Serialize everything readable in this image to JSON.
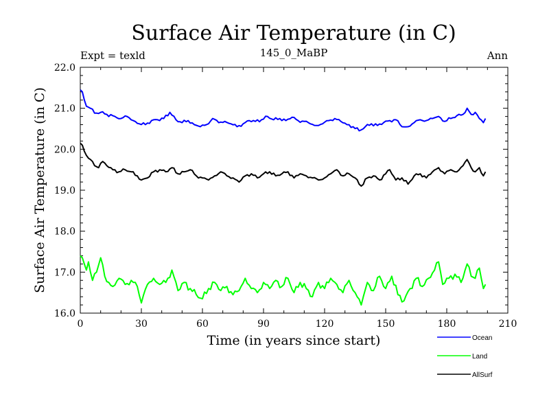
{
  "chart_data": {
    "type": "line",
    "title": "Surface Air Temperature (in C)",
    "subtitle": "145_0_MaBP",
    "left_label": "Expt = texld",
    "right_label": "Ann",
    "xlabel": "Time (in years since start)",
    "ylabel": "Surface Air Temperature (in C)",
    "xlim": [
      0,
      210
    ],
    "ylim": [
      16.0,
      22.0
    ],
    "x_ticks": [
      0,
      30,
      60,
      90,
      120,
      150,
      180,
      210
    ],
    "y_ticks": [
      "16.0",
      "17.0",
      "18.0",
      "19.0",
      "20.0",
      "21.0",
      "22.0"
    ],
    "legend_position": "bottom-right",
    "series": [
      {
        "name": "Ocean",
        "color": "#0000ff",
        "anchors": [
          [
            0,
            21.45
          ],
          [
            1,
            21.4
          ],
          [
            2,
            21.2
          ],
          [
            3,
            21.05
          ],
          [
            5,
            21.0
          ],
          [
            7,
            20.88
          ],
          [
            10,
            20.9
          ],
          [
            13,
            20.85
          ],
          [
            17,
            20.8
          ],
          [
            20,
            20.75
          ],
          [
            23,
            20.8
          ],
          [
            26,
            20.7
          ],
          [
            29,
            20.62
          ],
          [
            32,
            20.6
          ],
          [
            35,
            20.7
          ],
          [
            38,
            20.72
          ],
          [
            41,
            20.75
          ],
          [
            44,
            20.9
          ],
          [
            47,
            20.72
          ],
          [
            50,
            20.65
          ],
          [
            53,
            20.7
          ],
          [
            56,
            20.6
          ],
          [
            59,
            20.55
          ],
          [
            62,
            20.6
          ],
          [
            65,
            20.75
          ],
          [
            68,
            20.65
          ],
          [
            71,
            20.68
          ],
          [
            74,
            20.62
          ],
          [
            77,
            20.55
          ],
          [
            80,
            20.62
          ],
          [
            83,
            20.7
          ],
          [
            86,
            20.68
          ],
          [
            89,
            20.72
          ],
          [
            92,
            20.8
          ],
          [
            95,
            20.72
          ],
          [
            98,
            20.75
          ],
          [
            101,
            20.7
          ],
          [
            104,
            20.78
          ],
          [
            107,
            20.7
          ],
          [
            110,
            20.68
          ],
          [
            113,
            20.62
          ],
          [
            116,
            20.58
          ],
          [
            119,
            20.62
          ],
          [
            122,
            20.7
          ],
          [
            125,
            20.75
          ],
          [
            128,
            20.68
          ],
          [
            131,
            20.6
          ],
          [
            134,
            20.55
          ],
          [
            137,
            20.45
          ],
          [
            140,
            20.55
          ],
          [
            143,
            20.62
          ],
          [
            146,
            20.58
          ],
          [
            149,
            20.65
          ],
          [
            152,
            20.7
          ],
          [
            155,
            20.72
          ],
          [
            158,
            20.55
          ],
          [
            161,
            20.55
          ],
          [
            164,
            20.65
          ],
          [
            167,
            20.72
          ],
          [
            170,
            20.7
          ],
          [
            173,
            20.75
          ],
          [
            176,
            20.8
          ],
          [
            179,
            20.68
          ],
          [
            182,
            20.75
          ],
          [
            185,
            20.82
          ],
          [
            188,
            20.85
          ],
          [
            190,
            21.0
          ],
          [
            192,
            20.85
          ],
          [
            194,
            20.9
          ],
          [
            196,
            20.75
          ],
          [
            198,
            20.65
          ],
          [
            199,
            20.75
          ]
        ]
      },
      {
        "name": "Land",
        "color": "#00ff00",
        "anchors": [
          [
            0,
            17.4
          ],
          [
            1,
            17.35
          ],
          [
            2,
            17.2
          ],
          [
            3,
            17.05
          ],
          [
            4,
            17.25
          ],
          [
            5,
            17.0
          ],
          [
            6,
            16.8
          ],
          [
            8,
            17.0
          ],
          [
            10,
            17.35
          ],
          [
            12,
            16.9
          ],
          [
            14,
            16.75
          ],
          [
            16,
            16.65
          ],
          [
            19,
            16.85
          ],
          [
            22,
            16.7
          ],
          [
            25,
            16.8
          ],
          [
            28,
            16.65
          ],
          [
            30,
            16.25
          ],
          [
            33,
            16.7
          ],
          [
            36,
            16.85
          ],
          [
            39,
            16.7
          ],
          [
            42,
            16.75
          ],
          [
            45,
            17.05
          ],
          [
            48,
            16.55
          ],
          [
            51,
            16.75
          ],
          [
            54,
            16.6
          ],
          [
            57,
            16.45
          ],
          [
            60,
            16.35
          ],
          [
            63,
            16.6
          ],
          [
            66,
            16.75
          ],
          [
            69,
            16.55
          ],
          [
            72,
            16.65
          ],
          [
            75,
            16.45
          ],
          [
            78,
            16.55
          ],
          [
            81,
            16.85
          ],
          [
            84,
            16.6
          ],
          [
            87,
            16.5
          ],
          [
            90,
            16.75
          ],
          [
            93,
            16.6
          ],
          [
            96,
            16.8
          ],
          [
            99,
            16.65
          ],
          [
            102,
            16.85
          ],
          [
            105,
            16.5
          ],
          [
            108,
            16.75
          ],
          [
            111,
            16.6
          ],
          [
            114,
            16.4
          ],
          [
            117,
            16.75
          ],
          [
            120,
            16.6
          ],
          [
            123,
            16.85
          ],
          [
            126,
            16.7
          ],
          [
            129,
            16.5
          ],
          [
            132,
            16.8
          ],
          [
            135,
            16.5
          ],
          [
            138,
            16.2
          ],
          [
            141,
            16.75
          ],
          [
            144,
            16.55
          ],
          [
            147,
            16.9
          ],
          [
            150,
            16.6
          ],
          [
            153,
            16.9
          ],
          [
            156,
            16.45
          ],
          [
            159,
            16.3
          ],
          [
            162,
            16.6
          ],
          [
            165,
            16.85
          ],
          [
            168,
            16.65
          ],
          [
            171,
            16.85
          ],
          [
            174,
            17.05
          ],
          [
            176,
            17.25
          ],
          [
            178,
            16.7
          ],
          [
            181,
            16.85
          ],
          [
            184,
            16.95
          ],
          [
            187,
            16.75
          ],
          [
            190,
            17.2
          ],
          [
            192,
            16.9
          ],
          [
            194,
            16.85
          ],
          [
            196,
            17.1
          ],
          [
            198,
            16.6
          ],
          [
            199,
            16.7
          ]
        ]
      },
      {
        "name": "AllSurf",
        "color": "#000000",
        "anchors": [
          [
            0,
            20.15
          ],
          [
            1,
            20.1
          ],
          [
            2,
            19.95
          ],
          [
            3,
            19.85
          ],
          [
            5,
            19.75
          ],
          [
            7,
            19.6
          ],
          [
            9,
            19.55
          ],
          [
            11,
            19.7
          ],
          [
            13,
            19.6
          ],
          [
            16,
            19.5
          ],
          [
            19,
            19.45
          ],
          [
            22,
            19.5
          ],
          [
            25,
            19.45
          ],
          [
            28,
            19.35
          ],
          [
            30,
            19.25
          ],
          [
            33,
            19.3
          ],
          [
            36,
            19.45
          ],
          [
            39,
            19.5
          ],
          [
            42,
            19.45
          ],
          [
            45,
            19.55
          ],
          [
            48,
            19.4
          ],
          [
            51,
            19.45
          ],
          [
            54,
            19.5
          ],
          [
            57,
            19.35
          ],
          [
            60,
            19.3
          ],
          [
            63,
            19.25
          ],
          [
            66,
            19.35
          ],
          [
            69,
            19.45
          ],
          [
            72,
            19.35
          ],
          [
            75,
            19.3
          ],
          [
            78,
            19.2
          ],
          [
            81,
            19.35
          ],
          [
            84,
            19.4
          ],
          [
            87,
            19.3
          ],
          [
            90,
            19.4
          ],
          [
            93,
            19.45
          ],
          [
            96,
            19.35
          ],
          [
            99,
            19.4
          ],
          [
            102,
            19.45
          ],
          [
            105,
            19.3
          ],
          [
            108,
            19.4
          ],
          [
            111,
            19.35
          ],
          [
            114,
            19.3
          ],
          [
            117,
            19.25
          ],
          [
            120,
            19.3
          ],
          [
            123,
            19.4
          ],
          [
            126,
            19.5
          ],
          [
            129,
            19.35
          ],
          [
            132,
            19.4
          ],
          [
            135,
            19.3
          ],
          [
            138,
            19.1
          ],
          [
            141,
            19.3
          ],
          [
            144,
            19.35
          ],
          [
            147,
            19.25
          ],
          [
            150,
            19.4
          ],
          [
            152,
            19.5
          ],
          [
            155,
            19.25
          ],
          [
            158,
            19.3
          ],
          [
            161,
            19.15
          ],
          [
            164,
            19.35
          ],
          [
            167,
            19.4
          ],
          [
            170,
            19.3
          ],
          [
            173,
            19.45
          ],
          [
            176,
            19.55
          ],
          [
            179,
            19.4
          ],
          [
            182,
            19.5
          ],
          [
            185,
            19.45
          ],
          [
            188,
            19.6
          ],
          [
            190,
            19.75
          ],
          [
            192,
            19.55
          ],
          [
            194,
            19.45
          ],
          [
            196,
            19.55
          ],
          [
            198,
            19.35
          ],
          [
            199,
            19.45
          ]
        ]
      }
    ]
  }
}
